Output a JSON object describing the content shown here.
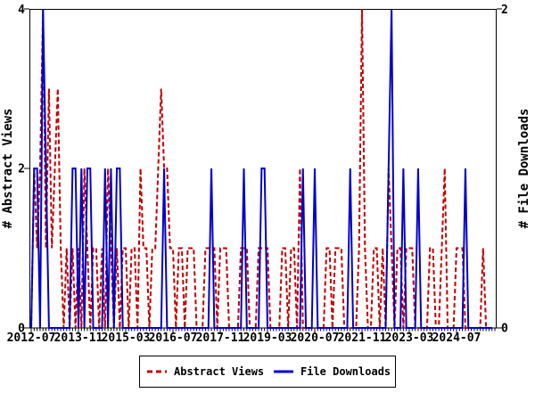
{
  "window": {
    "background_color": "#ffffff",
    "axis_color": "#000000"
  },
  "chart_data": {
    "type": "line",
    "title": "",
    "x_axis": {
      "start_month": "2012-07",
      "end_month": "2025-07",
      "minor_tick_interval_months": 1,
      "tick_labels": [
        "2012-07",
        "2013-11",
        "2015-03",
        "2016-07",
        "2017-11",
        "2019-03",
        "2020-07",
        "2021-11",
        "2023-03",
        "2024-07"
      ],
      "tick_month_indices": [
        0,
        16,
        32,
        48,
        64,
        80,
        96,
        112,
        128,
        144
      ]
    },
    "left_axis": {
      "label": "# Abstract Views",
      "tick_labels": [
        "0",
        "2",
        "4"
      ],
      "tick_values": [
        0,
        2,
        4
      ],
      "range": [
        0,
        4
      ]
    },
    "right_axis": {
      "label": "# File Downloads",
      "tick_labels": [
        "0",
        "2"
      ],
      "tick_values": [
        0,
        2
      ],
      "range": [
        0,
        2
      ]
    },
    "legend": {
      "position": "bottom-center",
      "border": true,
      "entries": [
        "Abstract Views",
        "File Downloads"
      ]
    },
    "series": [
      {
        "name": "Abstract Views",
        "color": "#c00000",
        "line_style": "dashed",
        "axis": "left",
        "values": [
          0,
          2,
          1,
          2,
          4,
          1,
          3,
          1,
          2,
          3,
          1,
          0,
          1,
          0,
          1,
          0,
          1,
          0,
          2,
          1,
          0,
          1,
          1,
          0,
          1,
          0,
          2,
          1,
          0,
          1,
          0,
          1,
          1,
          0,
          1,
          1,
          0,
          2,
          1,
          1,
          0,
          1,
          1,
          2,
          3,
          2,
          2,
          1,
          1,
          0,
          1,
          1,
          0,
          1,
          1,
          1,
          0,
          0,
          0,
          1,
          1,
          1,
          1,
          0,
          1,
          1,
          1,
          0,
          0,
          0,
          0,
          1,
          1,
          1,
          0,
          0,
          0,
          1,
          1,
          1,
          1,
          0,
          0,
          0,
          0,
          1,
          1,
          0,
          1,
          1,
          0,
          2,
          0,
          0,
          0,
          0,
          0,
          0,
          0,
          0,
          1,
          1,
          0,
          1,
          1,
          1,
          0,
          0,
          0,
          0,
          0,
          1,
          4,
          1,
          0,
          0,
          1,
          1,
          0,
          1,
          0,
          2,
          1,
          0,
          1,
          1,
          0,
          1,
          1,
          1,
          0,
          0,
          0,
          0,
          0,
          1,
          1,
          0,
          0,
          1,
          2,
          0,
          0,
          0,
          1,
          1,
          1,
          0,
          0,
          0,
          0,
          0,
          0,
          1,
          0,
          0,
          0
        ]
      },
      {
        "name": "File Downloads",
        "color": "#0000cc",
        "line_style": "solid",
        "axis": "right",
        "values": [
          0,
          1,
          1,
          0,
          2,
          1,
          0,
          0,
          0,
          0,
          0,
          0,
          0,
          0,
          1,
          1,
          0,
          1,
          0,
          1,
          1,
          0,
          0,
          0,
          0,
          1,
          0,
          1,
          0,
          1,
          1,
          0,
          0,
          0,
          0,
          0,
          0,
          0,
          0,
          0,
          0,
          0,
          0,
          0,
          0,
          1,
          0,
          0,
          0,
          0,
          0,
          0,
          0,
          0,
          0,
          0,
          0,
          0,
          0,
          0,
          0,
          1,
          0,
          0,
          0,
          0,
          0,
          0,
          0,
          0,
          0,
          0,
          1,
          0,
          0,
          0,
          0,
          0,
          1,
          1,
          0,
          0,
          0,
          0,
          0,
          0,
          0,
          0,
          0,
          0,
          0,
          0,
          1,
          0,
          0,
          0,
          1,
          0,
          0,
          0,
          0,
          0,
          0,
          0,
          0,
          0,
          0,
          0,
          1,
          0,
          0,
          0,
          0,
          0,
          0,
          0,
          0,
          0,
          0,
          0,
          0,
          1,
          2,
          0,
          0,
          0,
          1,
          0,
          0,
          0,
          0,
          1,
          0,
          0,
          0,
          0,
          0,
          0,
          0,
          0,
          0,
          0,
          0,
          0,
          0,
          0,
          0,
          1,
          0,
          0,
          0,
          0,
          0,
          0,
          0,
          0,
          0
        ]
      }
    ]
  }
}
